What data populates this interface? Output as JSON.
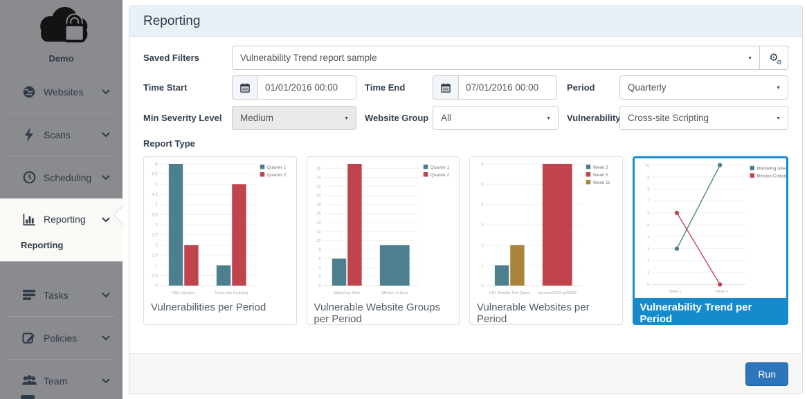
{
  "sidebar": {
    "brand": "Demo",
    "items": [
      {
        "label": "Websites"
      },
      {
        "label": "Scans"
      },
      {
        "label": "Scheduling"
      },
      {
        "label": "Reporting",
        "subitem": "Reporting"
      },
      {
        "label": "Tasks"
      },
      {
        "label": "Policies"
      },
      {
        "label": "Team"
      }
    ]
  },
  "header": {
    "title": "Reporting"
  },
  "filters": {
    "saved_filters": {
      "label": "Saved Filters",
      "value": "Vulnerability Trend report sample"
    },
    "time_start": {
      "label": "Time Start",
      "value": "01/01/2016 00:00"
    },
    "time_end": {
      "label": "Time End",
      "value": "07/01/2016 00:00"
    },
    "period": {
      "label": "Period",
      "value": "Quarterly"
    },
    "min_severity": {
      "label": "Min Severity Level",
      "value": "Medium"
    },
    "website_group": {
      "label": "Website Group",
      "value": "All"
    },
    "vulnerability": {
      "label": "Vulnerability",
      "value": "Cross-site Scripting"
    }
  },
  "report_type": {
    "label": "Report Type"
  },
  "footer": {
    "run_label": "Run"
  },
  "colors": {
    "accent_selected": "#158acd",
    "run_button": "#2e76ba",
    "sidebar_bg": "#8a8b8e",
    "bar_teal": "#4d7f8e",
    "bar_red": "#c0444e",
    "bar_gold": "#aa843c"
  },
  "chart_data": [
    {
      "type": "bar",
      "title": "Vulnerabilities per Period",
      "categories": [
        "SQL Injection",
        "Cross-site Scripting"
      ],
      "series": [
        {
          "name": "Quarter 1",
          "color": "#4d7f8e",
          "values": [
            6,
            1
          ]
        },
        {
          "name": "Quarter 2",
          "color": "#c0444e",
          "values": [
            2,
            5
          ]
        }
      ],
      "ylim": [
        0,
        6
      ],
      "ytick": 0.5,
      "grid": true,
      "legend": "top-right",
      "selected": false
    },
    {
      "type": "bar",
      "title": "Vulnerable Website Groups per Period",
      "categories": [
        "Marketing Sites",
        "Mission Critical"
      ],
      "series": [
        {
          "name": "Quarter 1",
          "color": "#4d7f8e",
          "values": [
            6,
            9
          ]
        },
        {
          "name": "Quarter 2",
          "color": "#c0444e",
          "values": [
            27,
            null
          ]
        }
      ],
      "ylim": [
        0,
        26
      ],
      "ytick": 2,
      "grid": true,
      "legend": "top-right",
      "selected": false
    },
    {
      "type": "bar",
      "title": "Vulnerable Websites per Period",
      "categories": [
        "URL Rewrite Test Cases",
        "windows2003-sp08081"
      ],
      "series": [
        {
          "name": "Week 3",
          "color": "#4d7f8e",
          "values": [
            1,
            null
          ]
        },
        {
          "name": "Week 5",
          "color": "#c0444e",
          "values": [
            null,
            6
          ]
        },
        {
          "name": "Week 11",
          "color": "#aa843c",
          "values": [
            2,
            null
          ]
        }
      ],
      "ylim": [
        0,
        6
      ],
      "ytick": 1,
      "grid": true,
      "legend": "top-right",
      "selected": false
    },
    {
      "type": "line",
      "title": "Vulnerability Trend per Period",
      "categories": [
        "Week 1",
        "Week 2"
      ],
      "series": [
        {
          "name": "Marketing Sites",
          "color": "#4d7f8e",
          "values": [
            3,
            10
          ]
        },
        {
          "name": "Mission Critical",
          "color": "#c0444e",
          "values": [
            6,
            0
          ]
        }
      ],
      "ylim": [
        0,
        10
      ],
      "ytick": 1,
      "grid": true,
      "legend": "top-right",
      "selected": true
    }
  ]
}
